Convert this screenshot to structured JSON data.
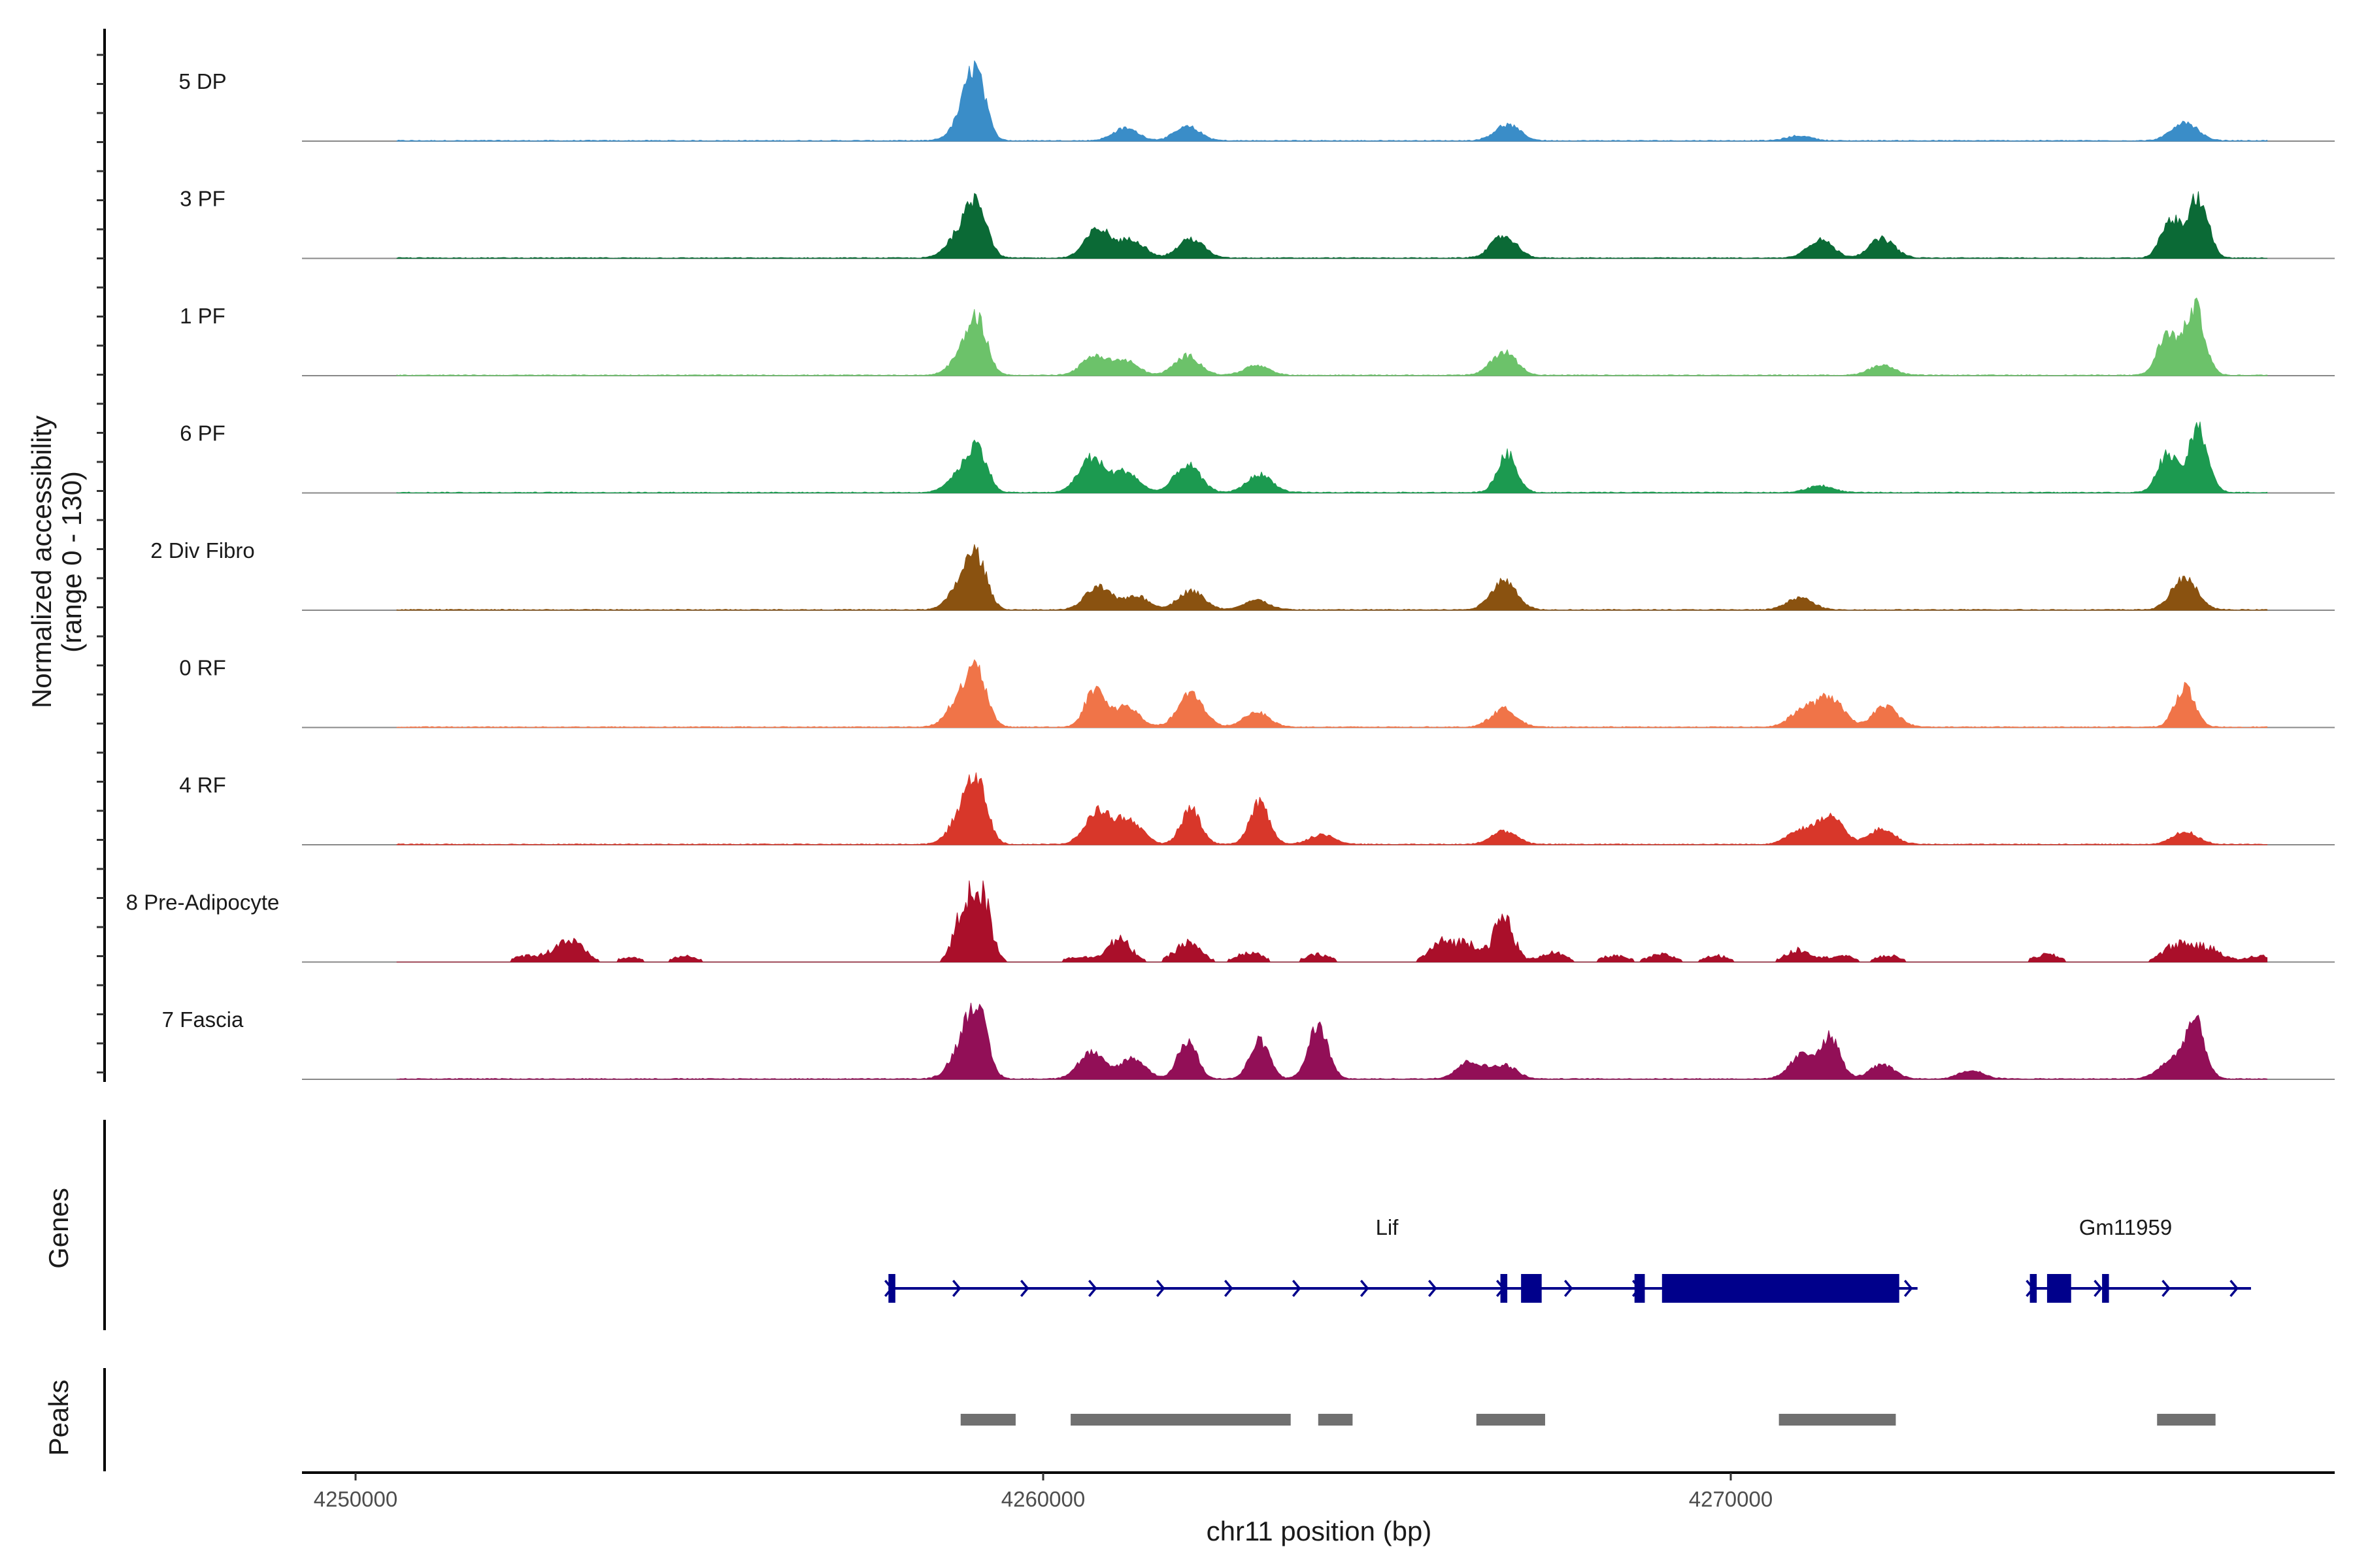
{
  "chart_data": {
    "type": "area",
    "region": {
      "chromosome": "chr11",
      "start": 4250000,
      "end": 4279000
    },
    "x_axis": {
      "title": "chr11 position (bp)",
      "ticks": [
        4250000,
        4260000,
        4270000
      ],
      "tick_labels": [
        "4250000",
        "4260000",
        "4270000"
      ]
    },
    "coverage_panel": {
      "ylabel_line1": "Normalized accessibility",
      "ylabel_line2": "(range 0 - 130)",
      "ymax": 130
    },
    "genes_panel_label": "Genes",
    "peaks_panel_label": "Peaks",
    "baseline_color": "#888888",
    "tracks": [
      {
        "name": "5 DP",
        "color": "#3A8DC8",
        "peaks": [
          [
            4258880,
            0.34
          ],
          [
            4259020,
            0.8
          ],
          [
            4261200,
            0.18
          ],
          [
            4262100,
            0.2
          ],
          [
            4266750,
            0.23
          ],
          [
            4271000,
            0.07
          ],
          [
            4276600,
            0.28
          ]
        ]
      },
      {
        "name": "3 PF",
        "color": "#0B6A36",
        "peaks": [
          [
            4258800,
            0.37
          ],
          [
            4259050,
            0.72
          ],
          [
            4260800,
            0.42
          ],
          [
            4261300,
            0.26
          ],
          [
            4262150,
            0.28
          ],
          [
            4266700,
            0.32
          ],
          [
            4271300,
            0.27
          ],
          [
            4272200,
            0.28
          ],
          [
            4276400,
            0.55
          ],
          [
            4276800,
            0.88
          ]
        ]
      },
      {
        "name": "1 PF",
        "color": "#6CC26A",
        "peaks": [
          [
            4258850,
            0.3
          ],
          [
            4259050,
            0.68
          ],
          [
            4260750,
            0.28
          ],
          [
            4261200,
            0.2
          ],
          [
            4262100,
            0.28
          ],
          [
            4263100,
            0.14
          ],
          [
            4266700,
            0.34
          ],
          [
            4272200,
            0.15
          ],
          [
            4276350,
            0.6
          ],
          [
            4276750,
            0.98
          ]
        ]
      },
      {
        "name": "6 PF",
        "color": "#1C9A50",
        "peaks": [
          [
            4258800,
            0.27
          ],
          [
            4259050,
            0.58
          ],
          [
            4260700,
            0.5
          ],
          [
            4261200,
            0.3
          ],
          [
            4262100,
            0.4
          ],
          [
            4263150,
            0.26
          ],
          [
            4266750,
            0.55
          ],
          [
            4271300,
            0.1
          ],
          [
            4276350,
            0.55
          ],
          [
            4276800,
            0.92
          ]
        ]
      },
      {
        "name": "2 Div Fibro",
        "color": "#8A5210",
        "peaks": [
          [
            4258850,
            0.42
          ],
          [
            4259050,
            0.58
          ],
          [
            4260800,
            0.33
          ],
          [
            4261350,
            0.2
          ],
          [
            4262150,
            0.28
          ],
          [
            4263100,
            0.14
          ],
          [
            4266700,
            0.43
          ],
          [
            4271000,
            0.18
          ],
          [
            4276600,
            0.46
          ]
        ]
      },
      {
        "name": "0 RF",
        "color": "#F07448",
        "peaks": [
          [
            4258800,
            0.42
          ],
          [
            4259050,
            0.68
          ],
          [
            4260750,
            0.55
          ],
          [
            4261200,
            0.3
          ],
          [
            4262150,
            0.48
          ],
          [
            4263100,
            0.22
          ],
          [
            4266700,
            0.26
          ],
          [
            4271050,
            0.25
          ],
          [
            4271450,
            0.42
          ],
          [
            4272250,
            0.3
          ],
          [
            4276600,
            0.58
          ]
        ]
      },
      {
        "name": "4 RF",
        "color": "#D8372A",
        "peaks": [
          [
            4258850,
            0.48
          ],
          [
            4259050,
            0.72
          ],
          [
            4260800,
            0.48
          ],
          [
            4261250,
            0.35
          ],
          [
            4262150,
            0.52
          ],
          [
            4263150,
            0.6
          ],
          [
            4264050,
            0.14
          ],
          [
            4266700,
            0.19
          ],
          [
            4271000,
            0.2
          ],
          [
            4271450,
            0.4
          ],
          [
            4272200,
            0.22
          ],
          [
            4276600,
            0.18
          ]
        ]
      },
      {
        "name": "8 Pre-Adipocyte",
        "color": "#AA0F2A",
        "peaks": [
          [
            4252500,
            0.1
          ],
          [
            4253000,
            0.22
          ],
          [
            4253200,
            0.18
          ],
          [
            4254000,
            0.07
          ],
          [
            4254800,
            0.09
          ],
          [
            4258850,
            0.75
          ],
          [
            4259100,
            1.0
          ],
          [
            4260500,
            0.08
          ],
          [
            4261100,
            0.35
          ],
          [
            4262100,
            0.3
          ],
          [
            4263000,
            0.15
          ],
          [
            4264000,
            0.12
          ],
          [
            4265800,
            0.3
          ],
          [
            4266200,
            0.28
          ],
          [
            4266700,
            0.7
          ],
          [
            4267400,
            0.15
          ],
          [
            4268300,
            0.1
          ],
          [
            4269000,
            0.12
          ],
          [
            4269800,
            0.1
          ],
          [
            4271000,
            0.2
          ],
          [
            4271600,
            0.1
          ],
          [
            4272300,
            0.1
          ],
          [
            4274600,
            0.12
          ],
          [
            4276400,
            0.17
          ],
          [
            4276650,
            0.2
          ],
          [
            4277000,
            0.18
          ],
          [
            4277700,
            0.1
          ]
        ]
      },
      {
        "name": "7 Fascia",
        "color": "#920F57",
        "peaks": [
          [
            4258850,
            0.5
          ],
          [
            4259050,
            0.82
          ],
          [
            4260700,
            0.38
          ],
          [
            4261300,
            0.3
          ],
          [
            4262100,
            0.55
          ],
          [
            4263150,
            0.55
          ],
          [
            4264000,
            0.78
          ],
          [
            4266200,
            0.25
          ],
          [
            4266700,
            0.2
          ],
          [
            4271050,
            0.35
          ],
          [
            4271450,
            0.58
          ],
          [
            4272200,
            0.2
          ],
          [
            4273500,
            0.12
          ],
          [
            4276400,
            0.25
          ],
          [
            4276750,
            0.82
          ]
        ]
      }
    ],
    "genes": [
      {
        "name": "Lif",
        "strand": "+",
        "start": 4257750,
        "end": 4272450,
        "cds": [
          [
            4257750,
            4257850
          ],
          [
            4266650,
            4266750
          ],
          [
            4266950,
            4267250
          ],
          [
            4268600,
            4268750
          ],
          [
            4269000,
            4272450
          ]
        ]
      },
      {
        "name": "Gm11959",
        "strand": "+",
        "start": 4274350,
        "end": 4277300,
        "cds": [
          [
            4274350,
            4274450
          ],
          [
            4274600,
            4274950
          ],
          [
            4275400,
            4275500
          ]
        ]
      }
    ],
    "peaks": [
      [
        4258800,
        4259600
      ],
      [
        4260400,
        4263600
      ],
      [
        4264000,
        4264500
      ],
      [
        4266300,
        4267300
      ],
      [
        4270700,
        4272400
      ],
      [
        4276200,
        4277050
      ]
    ]
  }
}
